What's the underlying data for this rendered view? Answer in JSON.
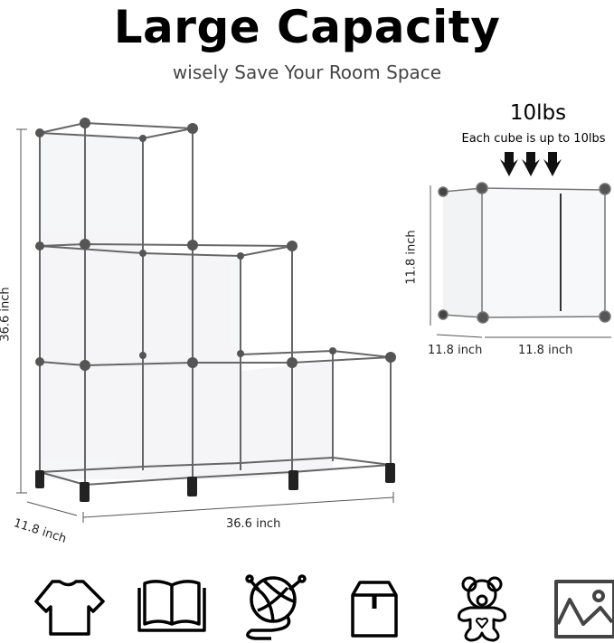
{
  "title": "Large Capacity",
  "subtitle": "wisely Save Your Room Space",
  "load": {
    "value": "10lbs",
    "note": "Each cube is up to 10lbs"
  },
  "main_shelf": {
    "height": "36.6 inch",
    "depth": "11.8 inch",
    "width": "36.6 inch"
  },
  "single_cube": {
    "height": "11.8 inch",
    "depth": "11.8 inch",
    "width": "11.8 inch"
  },
  "icons": [
    "t-shirt-icon",
    "book-icon",
    "yarn-ball-icon",
    "box-icon",
    "teddy-bear-icon",
    "picture-icon"
  ]
}
